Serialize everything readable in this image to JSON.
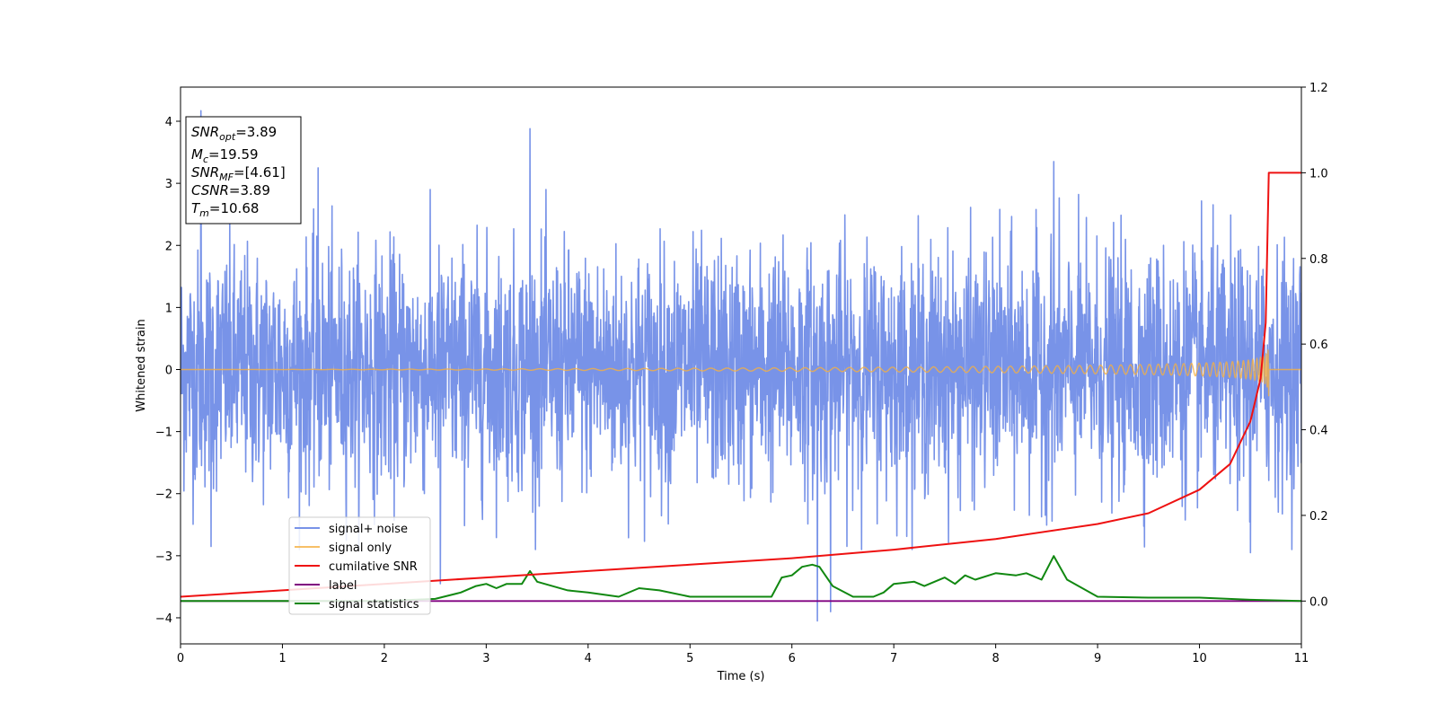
{
  "chart_data": {
    "type": "line",
    "xlabel": "Time (s)",
    "ylabel": "Whitened strain",
    "xlim": [
      0,
      11
    ],
    "ylim_left": [
      -4.42,
      4.55
    ],
    "ylim_right": [
      -0.1,
      1.2
    ],
    "xticks": [
      0,
      1,
      2,
      3,
      4,
      5,
      6,
      7,
      8,
      9,
      10,
      11
    ],
    "yticks_left": [
      -4,
      -3,
      -2,
      -1,
      0,
      1,
      2,
      3,
      4
    ],
    "yticks_right": [
      "0.0",
      "0.2",
      "0.4",
      "0.6",
      "0.8",
      "1.0",
      "1.2"
    ],
    "legend_position": "lower-left",
    "annotation": {
      "lines": [
        {
          "name": "SNR",
          "sub": "opt",
          "value": "=3.89"
        },
        {
          "name": "M",
          "sub": "c",
          "value": "=19.59"
        },
        {
          "name": "SNR",
          "sub": "MF",
          "value": "=[4.61]"
        },
        {
          "name": "CSNR",
          "sub": "",
          "value": "=3.89"
        },
        {
          "name": "T",
          "sub": "m",
          "value": "=10.68"
        }
      ]
    },
    "series": [
      {
        "name": "signal+ noise",
        "axis": "left",
        "color": "#7893e8",
        "description_values": {
          "typical_range": [
            -2.0,
            2.0
          ],
          "max_spike": 4.17,
          "min_spike": -4.05
        },
        "notable_spikes": [
          [
            0.2,
            4.17
          ],
          [
            3.43,
            3.88
          ],
          [
            8.57,
            3.35
          ],
          [
            1.35,
            3.25
          ],
          [
            6.25,
            -4.05
          ],
          [
            6.38,
            -3.9
          ],
          [
            2.55,
            -3.45
          ],
          [
            0.3,
            -2.85
          ],
          [
            10.5,
            -2.95
          ]
        ]
      },
      {
        "name": "signal only",
        "axis": "left",
        "color": "#f5b041",
        "description_values": {
          "chirp_end_time": 10.68,
          "peak_amplitude": 0.68
        }
      },
      {
        "name": "cumilative SNR",
        "axis": "right",
        "color": "#ee1111",
        "x": [
          0,
          1,
          2,
          3,
          4,
          5,
          6,
          7,
          8,
          9,
          9.5,
          10,
          10.3,
          10.5,
          10.6,
          10.65,
          10.68,
          11
        ],
        "y": [
          0.01,
          0.025,
          0.04,
          0.055,
          0.07,
          0.085,
          0.1,
          0.12,
          0.145,
          0.18,
          0.205,
          0.26,
          0.32,
          0.42,
          0.52,
          0.65,
          1.0,
          1.0
        ]
      },
      {
        "name": "label",
        "axis": "right",
        "color": "#800080",
        "x": [
          0,
          11
        ],
        "y": [
          0.0,
          0.0
        ]
      },
      {
        "name": "signal statistics",
        "axis": "right",
        "color": "#118811",
        "x": [
          0,
          2.0,
          2.5,
          2.75,
          2.9,
          3.0,
          3.1,
          3.2,
          3.35,
          3.43,
          3.5,
          3.8,
          4.0,
          4.3,
          4.5,
          4.7,
          5.0,
          5.1,
          5.3,
          5.8,
          5.9,
          6.0,
          6.1,
          6.2,
          6.27,
          6.4,
          6.6,
          6.8,
          6.9,
          7.0,
          7.2,
          7.3,
          7.5,
          7.6,
          7.7,
          7.8,
          8.0,
          8.2,
          8.3,
          8.45,
          8.57,
          8.7,
          9.0,
          9.5,
          10.0,
          10.5,
          11.0
        ],
        "y": [
          0.0,
          0.0,
          0.005,
          0.02,
          0.035,
          0.04,
          0.03,
          0.04,
          0.04,
          0.07,
          0.045,
          0.025,
          0.02,
          0.01,
          0.03,
          0.025,
          0.01,
          0.01,
          0.01,
          0.01,
          0.055,
          0.06,
          0.08,
          0.085,
          0.08,
          0.035,
          0.01,
          0.01,
          0.02,
          0.04,
          0.045,
          0.035,
          0.055,
          0.04,
          0.06,
          0.05,
          0.065,
          0.06,
          0.065,
          0.05,
          0.105,
          0.05,
          0.01,
          0.008,
          0.008,
          0.003,
          0.0
        ]
      }
    ]
  }
}
